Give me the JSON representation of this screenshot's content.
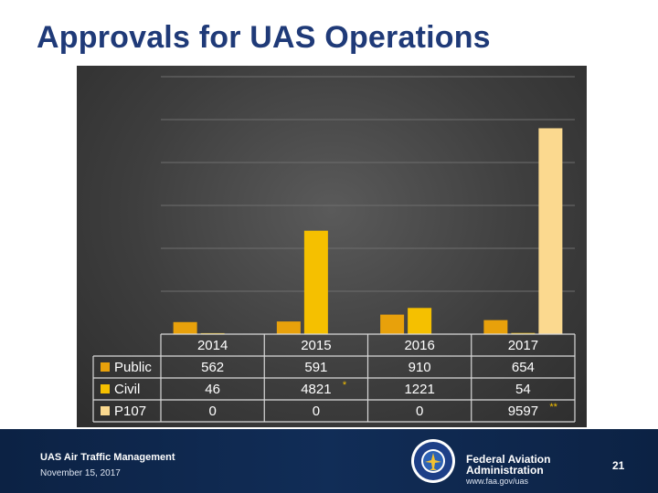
{
  "slide": {
    "title": "Approvals for UAS Operations"
  },
  "chart_data": {
    "type": "bar",
    "categories": [
      "2014",
      "2015",
      "2016",
      "2017"
    ],
    "series": [
      {
        "name": "Public",
        "values": [
          562,
          591,
          910,
          654
        ],
        "labels": [
          "562",
          "591",
          "910",
          "654"
        ],
        "color": "#e8a10b"
      },
      {
        "name": "Civil",
        "values": [
          46,
          4821,
          1221,
          54
        ],
        "labels": [
          "46",
          "4821",
          "1221",
          "54"
        ],
        "color": "#f5c000"
      },
      {
        "name": "P107",
        "values": [
          0,
          0,
          0,
          9597
        ],
        "labels": [
          "0",
          "0",
          "0",
          "9597"
        ],
        "color": "#fbd98f"
      }
    ],
    "table_notes": {
      "Civil-2015": "*",
      "P107-2017": "**"
    },
    "ylim": [
      0,
      12000
    ],
    "grid": true,
    "legend": "data-table-below"
  },
  "footer": {
    "program": "UAS Air Traffic Management",
    "date": "November 15, 2017",
    "agency_line1": "Federal Aviation",
    "agency_line2": "Administration",
    "url": "www.faa.gov/uas",
    "page_number": "21",
    "seal_icon": "faa-seal-icon"
  }
}
